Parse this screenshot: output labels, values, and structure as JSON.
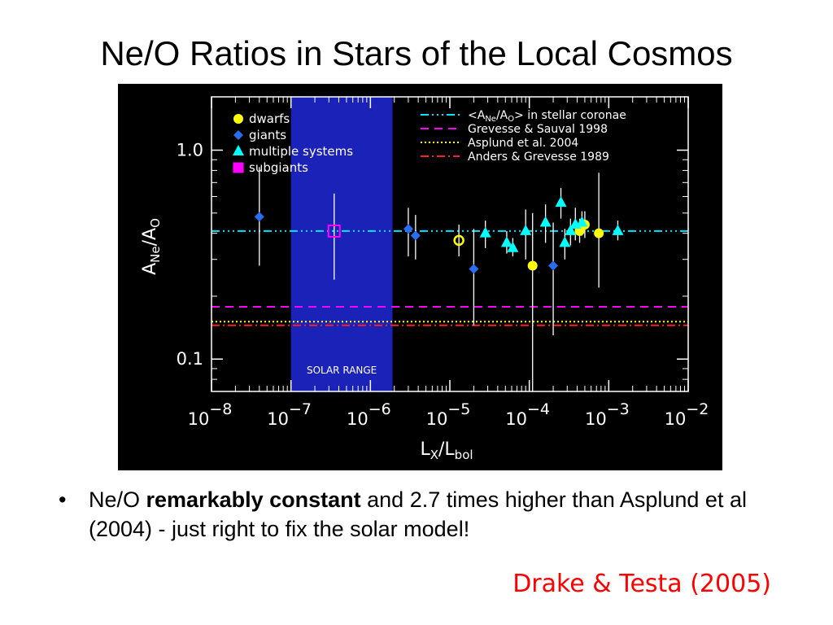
{
  "slide": {
    "title": "Ne/O Ratios in Stars of the Local Cosmos",
    "bullet": {
      "marker": "•",
      "pre": "Ne/O ",
      "bold": "remarkably constant",
      "post": " and 2.7 times higher than Asplund et al (2004) - just right to fix the solar model!"
    },
    "citation": "Drake & Testa (2005)"
  },
  "chart_data": {
    "type": "scatter",
    "x_scale": "log",
    "y_scale": "log",
    "xlim": [
      1e-08,
      0.01
    ],
    "ylim": [
      0.07,
      1.8
    ],
    "xlabel": {
      "base": "L",
      "sub1": "X",
      "sep": "/L",
      "sub2": "bol"
    },
    "ylabel": {
      "base": "A",
      "sub1": "Ne",
      "sep": "/A",
      "sub2": "O"
    },
    "x_ticks": [
      {
        "value": 1e-08,
        "base": "10",
        "exp": "−8"
      },
      {
        "value": 1e-07,
        "base": "10",
        "exp": "−7"
      },
      {
        "value": 1e-06,
        "base": "10",
        "exp": "−6"
      },
      {
        "value": 1e-05,
        "base": "10",
        "exp": "−5"
      },
      {
        "value": 0.0001,
        "base": "10",
        "exp": "−4"
      },
      {
        "value": 0.001,
        "base": "10",
        "exp": "−3"
      },
      {
        "value": 0.01,
        "base": "10",
        "exp": "−2"
      }
    ],
    "y_ticks": [
      {
        "value": 1.0,
        "label": "1.0"
      },
      {
        "value": 0.1,
        "label": "0.1"
      }
    ],
    "solar_range": {
      "x": [
        1e-07,
        1.9e-06
      ],
      "label": "SOLAR RANGE",
      "color": "#1a22b8"
    },
    "legend_markers": [
      {
        "label": "dwarfs",
        "marker": "circle",
        "color": "#ffff00"
      },
      {
        "label": "giants",
        "marker": "diamond",
        "color": "#2a6df0"
      },
      {
        "label": "multiple systems",
        "marker": "triangle",
        "color": "#00ffff"
      },
      {
        "label": "subgiants",
        "marker": "square",
        "color": "#ff00ff"
      }
    ],
    "legend_lines": [
      {
        "id": "coronae",
        "pre": "<A",
        "sub1": "Ne",
        "mid": "/A",
        "sub2": "O",
        "post": "> in stellar coronae"
      },
      {
        "id": "gs98",
        "text": "Grevesse & Sauval 1998"
      },
      {
        "id": "asp04",
        "text": "Asplund et al. 2004"
      },
      {
        "id": "ag89",
        "text": "Anders & Grevesse 1989"
      }
    ],
    "reference_lines": [
      {
        "id": "coronae",
        "y": 0.41,
        "color": "#00e5ff",
        "dash": "10 4 2 4 2 4 2 4"
      },
      {
        "id": "gs98",
        "y": 0.178,
        "color": "#ff00ff",
        "dash": "10 7"
      },
      {
        "id": "asp04",
        "y": 0.151,
        "color": "#ffff00",
        "dash": "2 3"
      },
      {
        "id": "ag89",
        "y": 0.145,
        "color": "#ff2020",
        "dash": "10 4 2 4"
      }
    ],
    "series": [
      {
        "name": "dwarfs",
        "marker": "circle",
        "color": "#ffff00",
        "points": [
          {
            "x": 1.3e-05,
            "y": 0.37,
            "lo": 0.31,
            "hi": 0.44,
            "open": true
          },
          {
            "x": 0.00011,
            "y": 0.28,
            "lo": 0.06,
            "hi": 0.5,
            "open": false
          },
          {
            "x": 0.00043,
            "y": 0.41,
            "lo": 0.36,
            "hi": 0.47,
            "open": false
          },
          {
            "x": 0.0005,
            "y": 0.44,
            "lo": 0.38,
            "hi": 0.51,
            "open": false
          },
          {
            "x": 0.00075,
            "y": 0.4,
            "lo": 0.22,
            "hi": 0.78,
            "open": false
          }
        ]
      },
      {
        "name": "giants",
        "marker": "diamond",
        "color": "#2a6df0",
        "points": [
          {
            "x": 4e-08,
            "y": 0.48,
            "lo": 0.28,
            "hi": 0.83
          },
          {
            "x": 3e-06,
            "y": 0.42,
            "lo": 0.31,
            "hi": 0.53
          },
          {
            "x": 3.7e-06,
            "y": 0.39,
            "lo": 0.3,
            "hi": 0.49
          },
          {
            "x": 2e-05,
            "y": 0.27,
            "lo": 0.145,
            "hi": 0.42
          },
          {
            "x": 0.0002,
            "y": 0.28,
            "lo": 0.13,
            "hi": 0.45
          }
        ]
      },
      {
        "name": "multiple systems",
        "marker": "triangle",
        "color": "#00ffff",
        "points": [
          {
            "x": 2.8e-05,
            "y": 0.4,
            "lo": 0.34,
            "hi": 0.46
          },
          {
            "x": 5.2e-05,
            "y": 0.36,
            "lo": 0.32,
            "hi": 0.41
          },
          {
            "x": 6.2e-05,
            "y": 0.34,
            "lo": 0.31,
            "hi": 0.38
          },
          {
            "x": 9e-05,
            "y": 0.41,
            "lo": 0.3,
            "hi": 0.52
          },
          {
            "x": 0.00016,
            "y": 0.45,
            "lo": 0.36,
            "hi": 0.55
          },
          {
            "x": 0.00025,
            "y": 0.56,
            "lo": 0.47,
            "hi": 0.66
          },
          {
            "x": 0.00028,
            "y": 0.36,
            "lo": 0.3,
            "hi": 0.42
          },
          {
            "x": 0.00033,
            "y": 0.41,
            "lo": 0.35,
            "hi": 0.47
          },
          {
            "x": 0.00038,
            "y": 0.44,
            "lo": 0.37,
            "hi": 0.53
          },
          {
            "x": 0.00046,
            "y": 0.45,
            "lo": 0.39,
            "hi": 0.51
          },
          {
            "x": 0.0013,
            "y": 0.41,
            "lo": 0.37,
            "hi": 0.46
          }
        ]
      },
      {
        "name": "subgiants",
        "marker": "square",
        "color": "#ff00ff",
        "points": [
          {
            "x": 3.5e-07,
            "y": 0.41,
            "lo": 0.24,
            "hi": 0.62,
            "open": true
          }
        ]
      }
    ]
  }
}
